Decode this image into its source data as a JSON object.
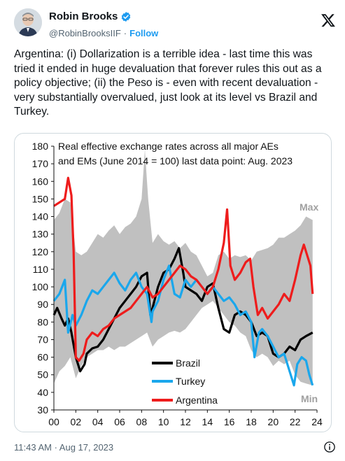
{
  "author": {
    "name": "Robin Brooks",
    "handle": "@RobinBrooksIIF",
    "separator": "·",
    "follow_label": "Follow",
    "verified_color": "#1d9bf0"
  },
  "tweet": {
    "text": "Argentina: (i) Dollarization is a terrible idea - last time this was tried it ended in huge devaluation that forever rules this out as a policy objective; (ii) the Peso is - even with recent devaluation - very substantially overvalued, just look at its level vs Brazil and Turkey.",
    "timestamp": "11:43 AM · Aug 17, 2023"
  },
  "icons": {
    "platform_logo": "x-logo-icon",
    "info": "info-icon",
    "verified": "verified-badge-icon"
  },
  "chart_data": {
    "type": "line",
    "title_lines": [
      "Real effective exchange rates across all major AEs",
      "and EMs (June 2014  = 100)  last data point: Aug. 2023"
    ],
    "xlabel": "",
    "ylabel": "",
    "xlim": [
      2000,
      2024
    ],
    "ylim": [
      30,
      180
    ],
    "x_ticks": [
      "00",
      "02",
      "04",
      "06",
      "08",
      "10",
      "12",
      "14",
      "16",
      "18",
      "20",
      "22",
      "24"
    ],
    "y_ticks": [
      30,
      40,
      50,
      60,
      70,
      80,
      90,
      100,
      110,
      120,
      130,
      140,
      150,
      160,
      170,
      180
    ],
    "grid": false,
    "legend_position": "bottom-center",
    "band": {
      "fill": "#c0c0c0",
      "max_label": "Max",
      "min_label": "Min",
      "max": [
        [
          2000,
          138
        ],
        [
          2000.5,
          142
        ],
        [
          2001,
          150
        ],
        [
          2001.5,
          148
        ],
        [
          2002,
          120
        ],
        [
          2002.5,
          118
        ],
        [
          2003,
          120
        ],
        [
          2003.5,
          125
        ],
        [
          2004,
          130
        ],
        [
          2004.5,
          128
        ],
        [
          2005,
          132
        ],
        [
          2005.5,
          135
        ],
        [
          2006,
          130
        ],
        [
          2006.5,
          134
        ],
        [
          2007,
          136
        ],
        [
          2007.5,
          140
        ],
        [
          2008,
          150
        ],
        [
          2008.3,
          178
        ],
        [
          2008.6,
          150
        ],
        [
          2009,
          125
        ],
        [
          2009.5,
          130
        ],
        [
          2010,
          126
        ],
        [
          2010.5,
          124
        ],
        [
          2011,
          126
        ],
        [
          2011.5,
          122
        ],
        [
          2012,
          125
        ],
        [
          2012.5,
          120
        ],
        [
          2013,
          118
        ],
        [
          2013.5,
          112
        ],
        [
          2014,
          106
        ],
        [
          2014.5,
          108
        ],
        [
          2015,
          118
        ],
        [
          2015.5,
          120
        ],
        [
          2016,
          116
        ],
        [
          2016.5,
          118
        ],
        [
          2017,
          117
        ],
        [
          2017.5,
          118
        ],
        [
          2018,
          115
        ],
        [
          2018.5,
          120
        ],
        [
          2019,
          121
        ],
        [
          2019.5,
          122
        ],
        [
          2020,
          124
        ],
        [
          2020.5,
          128
        ],
        [
          2021,
          128
        ],
        [
          2021.5,
          130
        ],
        [
          2022,
          132
        ],
        [
          2022.5,
          135
        ],
        [
          2023,
          140
        ],
        [
          2023.6,
          138
        ]
      ],
      "min": [
        [
          2000,
          45
        ],
        [
          2000.5,
          52
        ],
        [
          2001,
          55
        ],
        [
          2001.5,
          60
        ],
        [
          2002,
          48
        ],
        [
          2002.5,
          55
        ],
        [
          2003,
          60
        ],
        [
          2003.5,
          62
        ],
        [
          2004,
          64
        ],
        [
          2004.5,
          64
        ],
        [
          2005,
          66
        ],
        [
          2005.5,
          64
        ],
        [
          2006,
          66
        ],
        [
          2006.5,
          66
        ],
        [
          2007,
          68
        ],
        [
          2007.5,
          70
        ],
        [
          2008,
          72
        ],
        [
          2008.5,
          74
        ],
        [
          2009,
          66
        ],
        [
          2009.5,
          70
        ],
        [
          2010,
          72
        ],
        [
          2010.5,
          74
        ],
        [
          2011,
          75
        ],
        [
          2011.5,
          74
        ],
        [
          2012,
          76
        ],
        [
          2012.5,
          80
        ],
        [
          2013,
          84
        ],
        [
          2013.5,
          88
        ],
        [
          2014,
          90
        ],
        [
          2014.5,
          92
        ],
        [
          2015,
          88
        ],
        [
          2015.5,
          84
        ],
        [
          2016,
          80
        ],
        [
          2016.5,
          78
        ],
        [
          2017,
          74
        ],
        [
          2017.5,
          72
        ],
        [
          2018,
          64
        ],
        [
          2018.5,
          60
        ],
        [
          2019,
          62
        ],
        [
          2019.5,
          60
        ],
        [
          2020,
          55
        ],
        [
          2020.5,
          58
        ],
        [
          2021,
          56
        ],
        [
          2021.5,
          58
        ],
        [
          2022,
          50
        ],
        [
          2022.5,
          46
        ],
        [
          2023,
          45
        ],
        [
          2023.6,
          44
        ]
      ]
    },
    "series": [
      {
        "name": "Brazil",
        "color": "#000000",
        "points": [
          [
            2000,
            84
          ],
          [
            2000.3,
            88
          ],
          [
            2000.7,
            82
          ],
          [
            2001,
            78
          ],
          [
            2001.3,
            82
          ],
          [
            2001.6,
            74
          ],
          [
            2002,
            60
          ],
          [
            2002.4,
            52
          ],
          [
            2002.8,
            56
          ],
          [
            2003,
            62
          ],
          [
            2003.5,
            65
          ],
          [
            2004,
            66
          ],
          [
            2004.5,
            70
          ],
          [
            2005,
            76
          ],
          [
            2005.5,
            82
          ],
          [
            2006,
            88
          ],
          [
            2006.5,
            92
          ],
          [
            2007,
            96
          ],
          [
            2007.5,
            100
          ],
          [
            2008,
            106
          ],
          [
            2008.5,
            108
          ],
          [
            2008.8,
            84
          ],
          [
            2009,
            88
          ],
          [
            2009.5,
            100
          ],
          [
            2010,
            108
          ],
          [
            2010.5,
            110
          ],
          [
            2011,
            116
          ],
          [
            2011.4,
            122
          ],
          [
            2011.8,
            108
          ],
          [
            2012,
            100
          ],
          [
            2012.5,
            98
          ],
          [
            2013,
            96
          ],
          [
            2013.5,
            92
          ],
          [
            2014,
            100
          ],
          [
            2014.5,
            102
          ],
          [
            2015,
            88
          ],
          [
            2015.5,
            76
          ],
          [
            2016,
            74
          ],
          [
            2016.5,
            84
          ],
          [
            2017,
            86
          ],
          [
            2017.5,
            84
          ],
          [
            2018,
            80
          ],
          [
            2018.5,
            72
          ],
          [
            2019,
            74
          ],
          [
            2019.5,
            72
          ],
          [
            2020,
            62
          ],
          [
            2020.5,
            60
          ],
          [
            2021,
            62
          ],
          [
            2021.5,
            66
          ],
          [
            2022,
            64
          ],
          [
            2022.5,
            70
          ],
          [
            2023,
            72
          ],
          [
            2023.6,
            74
          ]
        ]
      },
      {
        "name": "Turkey",
        "color": "#1aa7ec",
        "points": [
          [
            2000,
            92
          ],
          [
            2000.5,
            96
          ],
          [
            2001,
            104
          ],
          [
            2001.3,
            74
          ],
          [
            2001.7,
            84
          ],
          [
            2002,
            78
          ],
          [
            2002.5,
            84
          ],
          [
            2003,
            92
          ],
          [
            2003.5,
            98
          ],
          [
            2004,
            96
          ],
          [
            2004.5,
            100
          ],
          [
            2005,
            104
          ],
          [
            2005.5,
            108
          ],
          [
            2006,
            102
          ],
          [
            2006.5,
            98
          ],
          [
            2007,
            104
          ],
          [
            2007.5,
            108
          ],
          [
            2008,
            100
          ],
          [
            2008.5,
            96
          ],
          [
            2008.9,
            80
          ],
          [
            2009,
            86
          ],
          [
            2009.5,
            92
          ],
          [
            2010,
            104
          ],
          [
            2010.5,
            112
          ],
          [
            2011,
            96
          ],
          [
            2011.5,
            94
          ],
          [
            2012,
            104
          ],
          [
            2012.5,
            100
          ],
          [
            2013,
            104
          ],
          [
            2013.5,
            100
          ],
          [
            2014,
            96
          ],
          [
            2014.5,
            100
          ],
          [
            2015,
            96
          ],
          [
            2015.5,
            92
          ],
          [
            2016,
            94
          ],
          [
            2016.5,
            90
          ],
          [
            2017,
            84
          ],
          [
            2017.5,
            86
          ],
          [
            2018,
            80
          ],
          [
            2018.3,
            60
          ],
          [
            2018.7,
            74
          ],
          [
            2019,
            76
          ],
          [
            2019.5,
            72
          ],
          [
            2020,
            66
          ],
          [
            2020.5,
            60
          ],
          [
            2021,
            62
          ],
          [
            2021.5,
            52
          ],
          [
            2021.9,
            44
          ],
          [
            2022.2,
            56
          ],
          [
            2022.6,
            60
          ],
          [
            2023,
            58
          ],
          [
            2023.3,
            50
          ],
          [
            2023.6,
            44
          ]
        ]
      },
      {
        "name": "Argentina",
        "color": "#ee1c1c",
        "points": [
          [
            2000,
            146
          ],
          [
            2000.5,
            148
          ],
          [
            2001,
            150
          ],
          [
            2001.3,
            162
          ],
          [
            2001.6,
            152
          ],
          [
            2001.8,
            120
          ],
          [
            2002,
            60
          ],
          [
            2002.3,
            58
          ],
          [
            2002.7,
            62
          ],
          [
            2003,
            70
          ],
          [
            2003.5,
            74
          ],
          [
            2004,
            72
          ],
          [
            2004.5,
            76
          ],
          [
            2005,
            78
          ],
          [
            2005.5,
            82
          ],
          [
            2006,
            84
          ],
          [
            2006.5,
            86
          ],
          [
            2007,
            88
          ],
          [
            2007.5,
            92
          ],
          [
            2008,
            96
          ],
          [
            2008.5,
            100
          ],
          [
            2009,
            94
          ],
          [
            2009.5,
            96
          ],
          [
            2010,
            100
          ],
          [
            2010.5,
            104
          ],
          [
            2011,
            108
          ],
          [
            2011.5,
            112
          ],
          [
            2012,
            110
          ],
          [
            2012.5,
            106
          ],
          [
            2013,
            104
          ],
          [
            2013.5,
            100
          ],
          [
            2014,
            96
          ],
          [
            2014.5,
            100
          ],
          [
            2015,
            110
          ],
          [
            2015.5,
            125
          ],
          [
            2015.8,
            144
          ],
          [
            2016.1,
            112
          ],
          [
            2016.5,
            104
          ],
          [
            2017,
            108
          ],
          [
            2017.5,
            114
          ],
          [
            2017.9,
            116
          ],
          [
            2018.2,
            100
          ],
          [
            2018.6,
            84
          ],
          [
            2019,
            88
          ],
          [
            2019.5,
            82
          ],
          [
            2020,
            86
          ],
          [
            2020.5,
            90
          ],
          [
            2021,
            96
          ],
          [
            2021.5,
            92
          ],
          [
            2022,
            104
          ],
          [
            2022.5,
            118
          ],
          [
            2022.8,
            124
          ],
          [
            2023.1,
            118
          ],
          [
            2023.4,
            112
          ],
          [
            2023.6,
            96
          ]
        ]
      }
    ]
  }
}
